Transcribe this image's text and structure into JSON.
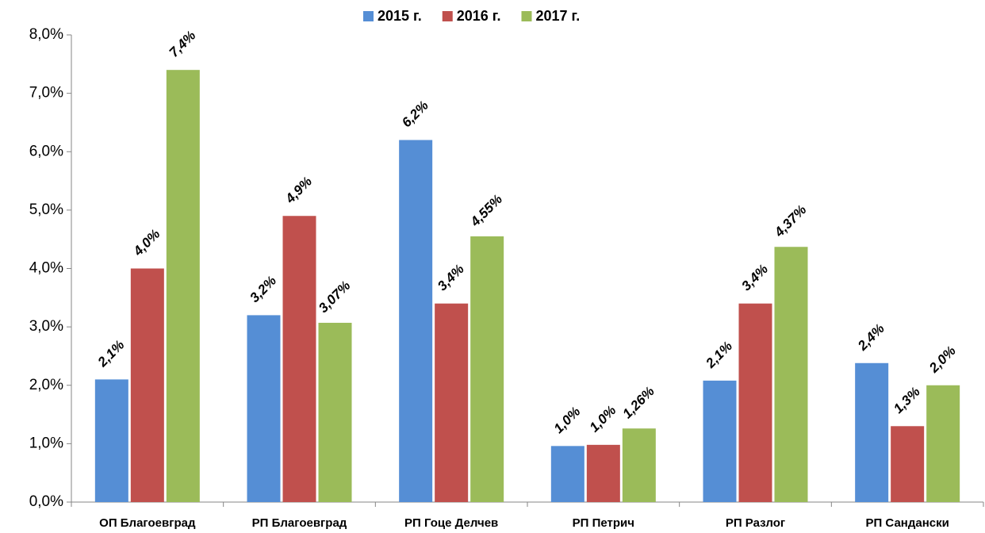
{
  "chart_data": {
    "type": "bar",
    "categories": [
      "ОП Благоевград",
      "РП Благоевград",
      "РП Гоце Делчев",
      "РП Петрич",
      "РП Разлог",
      "РП Сандански"
    ],
    "series": [
      {
        "name": "2015 г.",
        "color": "#558ed5",
        "values": [
          2.1,
          3.2,
          6.2,
          0.96,
          2.08,
          2.38
        ],
        "value_labels": [
          "2,1%",
          "3,2%",
          "6,2%",
          "1,0%",
          "2,1%",
          "2,4%"
        ]
      },
      {
        "name": "2016 г.",
        "color": "#c0504d",
        "values": [
          4.0,
          4.9,
          3.4,
          0.98,
          3.4,
          1.3
        ],
        "value_labels": [
          "4,0%",
          "4,9%",
          "3,4%",
          "1,0%",
          "3,4%",
          "1,3%"
        ]
      },
      {
        "name": "2017 г.",
        "color": "#9bbb59",
        "values": [
          7.4,
          3.07,
          4.55,
          1.26,
          4.37,
          2.0
        ],
        "value_labels": [
          "7,4%",
          "3,07%",
          "4,55%",
          "1,26%",
          "4,37%",
          "2,0%"
        ]
      }
    ],
    "ylim": [
      0,
      8
    ],
    "yticks": [
      {
        "value": 0,
        "label": "0,0%"
      },
      {
        "value": 1,
        "label": "1,0%"
      },
      {
        "value": 2,
        "label": "2,0%"
      },
      {
        "value": 3,
        "label": "3,0%"
      },
      {
        "value": 4,
        "label": "4,0%"
      },
      {
        "value": 5,
        "label": "5,0%"
      },
      {
        "value": 6,
        "label": "6,0%"
      },
      {
        "value": 7,
        "label": "7,0%"
      },
      {
        "value": 8,
        "label": "8,0%"
      }
    ],
    "legend": "top"
  }
}
